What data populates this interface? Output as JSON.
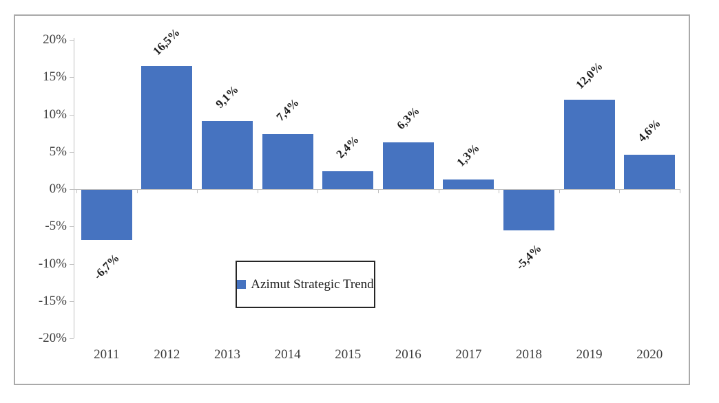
{
  "chart_data": {
    "type": "bar",
    "title": "",
    "xlabel": "",
    "ylabel": "",
    "categories": [
      "2011",
      "2012",
      "2013",
      "2014",
      "2015",
      "2016",
      "2017",
      "2018",
      "2019",
      "2020"
    ],
    "series": [
      {
        "name": "Azimut Strategic Trend",
        "values": [
          -6.7,
          16.5,
          9.1,
          7.4,
          2.4,
          6.3,
          1.3,
          -5.4,
          12.0,
          4.6
        ]
      }
    ],
    "value_labels": [
      "-6,7%",
      "16,5%",
      "9,1%",
      "7,4%",
      "2,4%",
      "6,3%",
      "1,3%",
      "-5,4%",
      "12,0%",
      "4,6%"
    ],
    "ylim": [
      -20,
      20
    ],
    "ytick_step": 5,
    "ytick_labels": [
      "20%",
      "15%",
      "10%",
      "5%",
      "0%",
      "-5%",
      "-10%",
      "-15%",
      "-20%"
    ],
    "grid": false,
    "legend": {
      "label": "Azimut Strategic Trend",
      "position": "inside-bottom-center",
      "bordered": true
    },
    "colors": {
      "bar": "#4673c0",
      "axis": "#bfbfbf",
      "tick_text": "#3d3d3d",
      "data_label_text": "#1c1c1c",
      "frame_border": "#a9a9a9",
      "legend_border": "#262626"
    }
  }
}
